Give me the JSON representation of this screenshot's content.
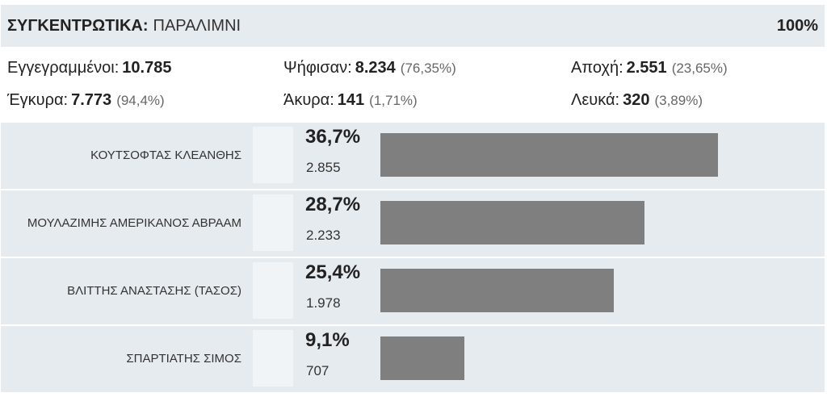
{
  "header": {
    "title_strong": "ΣΥΓΚΕΝΤΡΩΤΙΚΑ:",
    "place": "ΠΑΡΑΛΙΜΝΙ",
    "counted_percent": "100%"
  },
  "summary": {
    "registered": {
      "label": "Εγγεγραμμένοι:",
      "value": "10.785",
      "pct": ""
    },
    "voted": {
      "label": "Ψήφισαν:",
      "value": "8.234",
      "pct": "(76,35%)"
    },
    "abstention": {
      "label": "Αποχή:",
      "value": "2.551",
      "pct": "(23,65%)"
    },
    "valid": {
      "label": "Έγκυρα:",
      "value": "7.773",
      "pct": "(94,4%)"
    },
    "invalid": {
      "label": "Άκυρα:",
      "value": "141",
      "pct": "(1,71%)"
    },
    "blank": {
      "label": "Λευκά:",
      "value": "320",
      "pct": "(3,89%)"
    }
  },
  "candidates": [
    {
      "name": "ΚΟΥΤΣΟΦΤΑΣ ΚΛΕΑΝΘΗΣ",
      "percent_label": "36,7%",
      "votes": "2.855",
      "share": 0.767
    },
    {
      "name": "ΜΟΥΛΑΖΙΜΗΣ ΑΜΕΡΙΚΑΝΟΣ ΑΒΡΑΑΜ",
      "percent_label": "28,7%",
      "votes": "2.233",
      "share": 0.6
    },
    {
      "name": "ΒΛΙΤΤΗΣ ΑΝΑΣΤΑΣΗΣ (ΤΑΣΟΣ)",
      "percent_label": "25,4%",
      "votes": "1.978",
      "share": 0.531
    },
    {
      "name": "ΣΠΑΡΤΙΑΤΗΣ ΣΙΜΟΣ",
      "percent_label": "9,1%",
      "votes": "707",
      "share": 0.19
    }
  ],
  "colors": {
    "header_bg": "#e6ebf0",
    "bar": "#7f7f7f"
  }
}
